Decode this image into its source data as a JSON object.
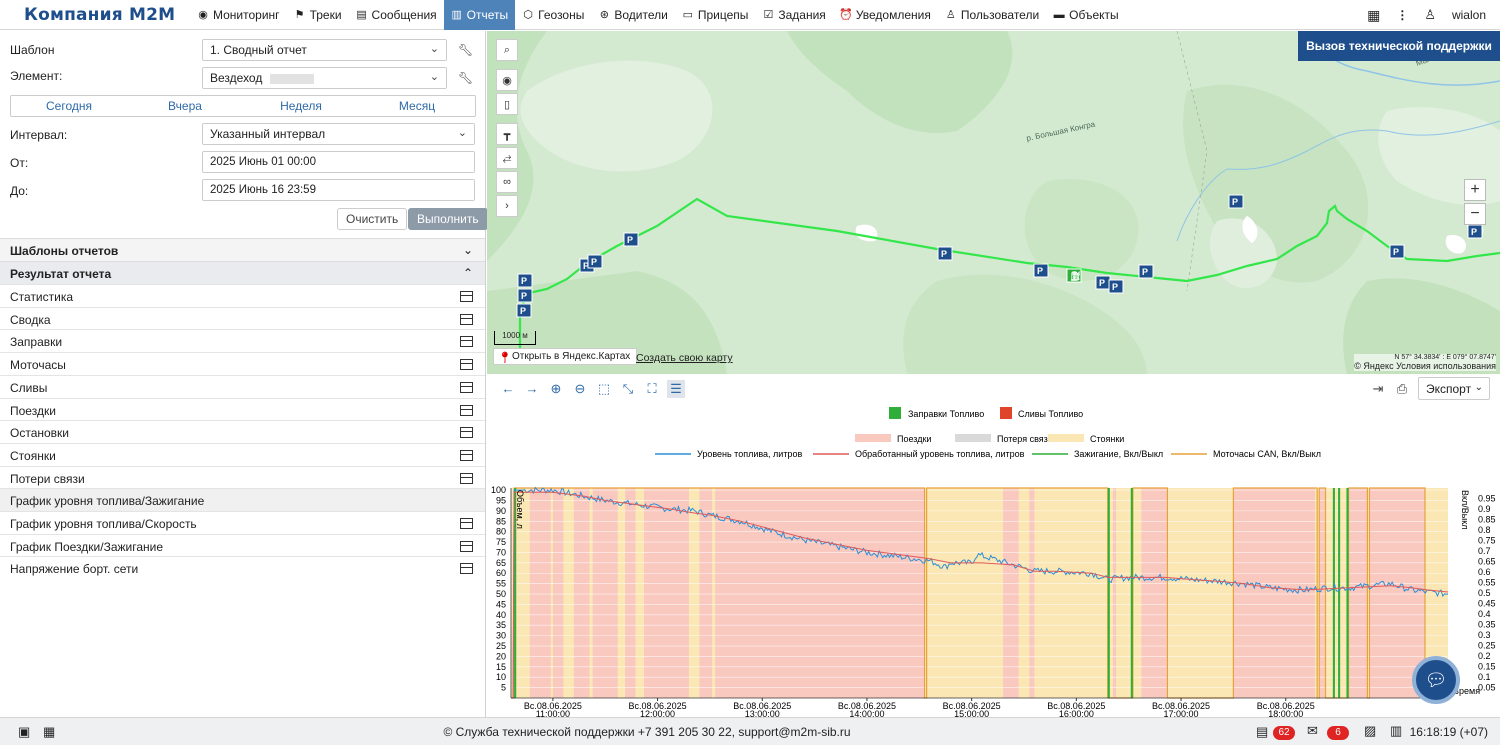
{
  "app": {
    "logo": "Компания M2M",
    "nav": [
      {
        "label": "Мониторинг",
        "icon": "eye-icon",
        "glyph": "◉"
      },
      {
        "label": "Треки",
        "icon": "flag-icon",
        "glyph": "⚑"
      },
      {
        "label": "Сообщения",
        "icon": "document-icon",
        "glyph": "▤"
      },
      {
        "label": "Отчеты",
        "icon": "report-icon",
        "glyph": "▥"
      },
      {
        "label": "Геозоны",
        "icon": "geofence-icon",
        "glyph": "⬡"
      },
      {
        "label": "Водители",
        "icon": "steering-icon",
        "glyph": "⊛"
      },
      {
        "label": "Прицепы",
        "icon": "trailer-icon",
        "glyph": "▭"
      },
      {
        "label": "Задания",
        "icon": "task-icon",
        "glyph": "☑"
      },
      {
        "label": "Уведомления",
        "icon": "bell-icon",
        "glyph": "⏰"
      },
      {
        "label": "Пользователи",
        "icon": "user-icon",
        "glyph": "♙"
      },
      {
        "label": "Объекты",
        "icon": "car-icon",
        "glyph": "▬"
      }
    ],
    "active_nav": "Отчеты",
    "username": "wialon"
  },
  "form": {
    "template_label": "Шаблон",
    "template_value": "1. Сводный отчет",
    "element_label": "Элемент:",
    "element_value": "Вездеход",
    "quick": [
      "Сегодня",
      "Вчера",
      "Неделя",
      "Месяц"
    ],
    "interval_label": "Интервал:",
    "interval_value": "Указанный интервал",
    "from_label": "От:",
    "from_value": "2025 Июнь 01 00:00",
    "to_label": "До:",
    "to_value": "2025 Июнь 16 23:59",
    "clear_label": "Очистить",
    "run_label": "Выполнить"
  },
  "sections": {
    "templates": "Шаблоны отчетов",
    "result": "Результат отчета"
  },
  "result_items": [
    {
      "label": "Статистика",
      "has_table": true
    },
    {
      "label": "Сводка",
      "has_table": true
    },
    {
      "label": "Заправки",
      "has_table": true
    },
    {
      "label": "Моточасы",
      "has_table": true
    },
    {
      "label": "Сливы",
      "has_table": true
    },
    {
      "label": "Поездки",
      "has_table": true
    },
    {
      "label": "Остановки",
      "has_table": true
    },
    {
      "label": "Стоянки",
      "has_table": true
    },
    {
      "label": "Потери связи",
      "has_table": true
    },
    {
      "label": "График уровня топлива/Зажигание",
      "has_table": false
    },
    {
      "label": "График уровня топлива/Скорость",
      "has_table": true
    },
    {
      "label": "График Поездки/Зажигание",
      "has_table": true
    },
    {
      "label": "Напряжение борт. сети",
      "has_table": true
    }
  ],
  "map": {
    "support_button": "Вызов технической поддержки",
    "open_in_yandex": "Открыть в Яндекс.Картах",
    "create_map": "Создать свою карту",
    "scale": "1000 м",
    "copyright": "© Яндекс Условия использования",
    "coords": "N 57° 34.3834' : E 079° 07.8747'",
    "river_label": "р. Большая Конгра",
    "river_label2": "Малая Конгра",
    "track_color": "#33e64a"
  },
  "chart_toolbar": {
    "export_label": "Экспорт"
  },
  "chart_data": {
    "type": "line",
    "legend_markers": [
      "Заправки Топливо",
      "Сливы Топливо"
    ],
    "legend_areas": [
      {
        "name": "Поездки",
        "color": "#f9c9c0"
      },
      {
        "name": "Потеря связи",
        "color": "#d9d9d9"
      },
      {
        "name": "Стоянки",
        "color": "#fbe7b3"
      }
    ],
    "legend_lines": [
      {
        "name": "Уровень топлива, литров",
        "color": "#2b8fd6"
      },
      {
        "name": "Обработанный уровень топлива, литров",
        "color": "#e05a5a"
      },
      {
        "name": "Зажигание, Вкл/Выкл",
        "color": "#2fae3a"
      },
      {
        "name": "Моточасы CAN, Вкл/Выкл",
        "color": "#e6a23c"
      }
    ],
    "ylabel_left": "Объем, л",
    "ylabel_right": "Вкл/Выкл",
    "xlabel": "Время",
    "y_left_ticks": [
      5,
      10,
      15,
      20,
      25,
      30,
      35,
      40,
      45,
      50,
      55,
      60,
      65,
      70,
      75,
      80,
      85,
      90,
      95,
      100
    ],
    "y_right_ticks": [
      0.05,
      0.1,
      0.15,
      0.2,
      0.25,
      0.3,
      0.35,
      0.4,
      0.45,
      0.5,
      0.55,
      0.6,
      0.65,
      0.7,
      0.75,
      0.8,
      0.85,
      0.9,
      0.95
    ],
    "ylim_left": [
      0,
      101
    ],
    "ylim_right": [
      0,
      1
    ],
    "x_ticks": [
      [
        "Вс.08.06.2025",
        "11:00:00"
      ],
      [
        "Вс.08.06.2025",
        "12:00:00"
      ],
      [
        "Вс.08.06.2025",
        "13:00:00"
      ],
      [
        "Вс.08.06.2025",
        "14:00:00"
      ],
      [
        "Вс.08.06.2025",
        "15:00:00"
      ],
      [
        "Вс.08.06.2025",
        "16:00:00"
      ],
      [
        "Вс.08.06.2025",
        "17:00:00"
      ],
      [
        "Вс.08.06.2025",
        "18:00:00"
      ]
    ],
    "x_start_hour": 10.6,
    "x_end_hour": 19.55,
    "stops": [
      [
        10.6,
        10.78
      ],
      [
        10.98,
        11.0
      ],
      [
        11.1,
        11.2
      ],
      [
        11.35,
        11.38
      ],
      [
        11.62,
        11.69
      ],
      [
        11.79,
        11.87
      ],
      [
        12.3,
        12.4
      ],
      [
        12.52,
        12.55
      ],
      [
        14.55,
        15.3
      ],
      [
        15.45,
        15.55
      ],
      [
        15.6,
        16.35
      ],
      [
        16.38,
        16.62
      ],
      [
        16.87,
        17.5
      ],
      [
        18.28,
        18.32
      ],
      [
        18.38,
        18.6
      ],
      [
        18.78,
        18.8
      ],
      [
        19.33,
        19.55
      ]
    ],
    "fuel_level": [
      [
        10.6,
        0
      ],
      [
        10.62,
        0
      ],
      [
        10.63,
        100
      ],
      [
        11.0,
        100
      ],
      [
        11.3,
        97
      ],
      [
        11.5,
        95
      ],
      [
        11.8,
        93
      ],
      [
        12.1,
        91
      ],
      [
        12.35,
        90
      ],
      [
        12.5,
        88
      ],
      [
        12.8,
        85
      ],
      [
        13.1,
        80
      ],
      [
        13.4,
        76
      ],
      [
        13.7,
        73
      ],
      [
        14.0,
        70
      ],
      [
        14.3,
        68
      ],
      [
        14.6,
        66
      ],
      [
        14.75,
        63
      ],
      [
        14.8,
        65
      ],
      [
        15.0,
        65
      ],
      [
        15.05,
        69
      ],
      [
        15.2,
        67
      ],
      [
        15.4,
        64
      ],
      [
        15.6,
        61
      ],
      [
        15.8,
        61
      ],
      [
        16.15,
        60
      ],
      [
        16.3,
        57
      ],
      [
        16.5,
        58
      ],
      [
        16.85,
        58
      ],
      [
        17.1,
        57
      ],
      [
        17.4,
        56
      ],
      [
        17.6,
        55
      ],
      [
        17.85,
        53
      ],
      [
        18.1,
        52
      ],
      [
        18.2,
        52
      ],
      [
        18.4,
        53
      ],
      [
        18.6,
        53
      ],
      [
        18.8,
        54
      ],
      [
        19.0,
        55
      ],
      [
        19.2,
        52
      ],
      [
        19.35,
        51
      ],
      [
        19.55,
        50
      ]
    ],
    "processed_fuel_level": [
      [
        10.6,
        0
      ],
      [
        10.62,
        0
      ],
      [
        10.63,
        99
      ],
      [
        11.0,
        99
      ],
      [
        11.3,
        97
      ],
      [
        11.5,
        95
      ],
      [
        11.8,
        93
      ],
      [
        12.1,
        91
      ],
      [
        12.35,
        89
      ],
      [
        12.5,
        88
      ],
      [
        12.8,
        85
      ],
      [
        13.1,
        81
      ],
      [
        13.4,
        77
      ],
      [
        13.7,
        74
      ],
      [
        14.0,
        71
      ],
      [
        14.3,
        69
      ],
      [
        14.6,
        67
      ],
      [
        14.8,
        65
      ],
      [
        15.0,
        65
      ],
      [
        15.1,
        65
      ],
      [
        15.4,
        64
      ],
      [
        15.6,
        61
      ],
      [
        15.8,
        61
      ],
      [
        16.15,
        60
      ],
      [
        16.3,
        58
      ],
      [
        16.85,
        58
      ],
      [
        17.1,
        57
      ],
      [
        17.4,
        56
      ],
      [
        17.6,
        55
      ],
      [
        17.85,
        53
      ],
      [
        18.2,
        52
      ],
      [
        18.6,
        53
      ],
      [
        19.0,
        54
      ],
      [
        19.2,
        53
      ],
      [
        19.35,
        52
      ],
      [
        19.55,
        51
      ]
    ],
    "ignition_switches": [
      10.63,
      10.65,
      16.3,
      16.32,
      16.52,
      16.54,
      18.45,
      18.47,
      18.5,
      18.52,
      18.58,
      18.6
    ],
    "engine_hours_on": [
      [
        10.63,
        14.55
      ],
      [
        14.57,
        16.3
      ],
      [
        16.54,
        16.87
      ],
      [
        17.5,
        18.3
      ],
      [
        18.32,
        18.38
      ],
      [
        18.6,
        18.78
      ],
      [
        18.8,
        19.33
      ]
    ]
  },
  "footer": {
    "text": "© Служба технической поддержки +7 391 205 30 22, support@m2m-sib.ru",
    "badge_messages": "62",
    "badge_mail": "6",
    "clock": "16:18:19 (+07)"
  }
}
